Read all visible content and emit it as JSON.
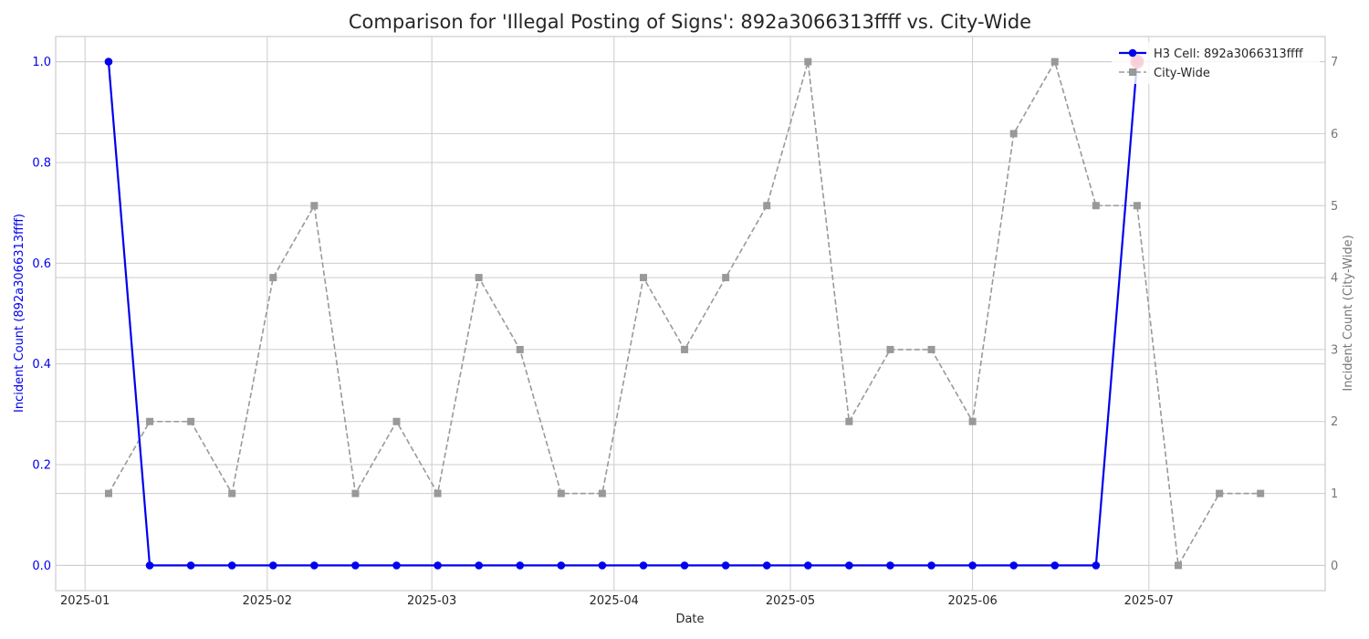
{
  "chart_data": {
    "type": "line",
    "title": "Comparison for 'Illegal Posting of Signs': 892a3066313ffff vs. City-Wide",
    "xlabel": "Date",
    "ylabel_left": "Incident Count (892a3066313ffff)",
    "ylabel_right": "Incident Count (City-Wide)",
    "x_ticks": [
      "2025-01",
      "2025-02",
      "2025-03",
      "2025-04",
      "2025-05",
      "2025-06",
      "2025-07"
    ],
    "x_tick_dates": [
      "2025-01-01",
      "2025-02-01",
      "2025-03-01",
      "2025-04-01",
      "2025-05-01",
      "2025-06-01",
      "2025-07-01"
    ],
    "x_range": [
      "2024-12-27",
      "2025-07-31"
    ],
    "ylim_left": [
      -0.05,
      1.05
    ],
    "ylim_right": [
      -0.35,
      7.35
    ],
    "y_ticks_left": [
      "0.0",
      "0.2",
      "0.4",
      "0.6",
      "0.8",
      "1.0"
    ],
    "y_tick_values_left": [
      0,
      0.2,
      0.4,
      0.6,
      0.8,
      1.0
    ],
    "y_ticks_right": [
      "0",
      "1",
      "2",
      "3",
      "4",
      "5",
      "6",
      "7"
    ],
    "y_tick_values_right": [
      0,
      1,
      2,
      3,
      4,
      5,
      6,
      7
    ],
    "grid": true,
    "legend_position": "top-right",
    "colors": {
      "cell": "#0000ee",
      "city": "#999999",
      "highlight": "#ee1133",
      "left_axis": "#0000ee",
      "right_axis": "#777777",
      "grid": "#cccccc",
      "frame": "#cccccc",
      "text": "#262626"
    },
    "series": [
      {
        "name": "H3 Cell: 892a3066313ffff",
        "axis": "left",
        "x": [
          "2025-01-05",
          "2025-01-12",
          "2025-01-19",
          "2025-01-26",
          "2025-02-02",
          "2025-02-09",
          "2025-02-16",
          "2025-02-23",
          "2025-03-02",
          "2025-03-09",
          "2025-03-16",
          "2025-03-23",
          "2025-03-30",
          "2025-04-06",
          "2025-04-13",
          "2025-04-20",
          "2025-04-27",
          "2025-05-04",
          "2025-05-11",
          "2025-05-18",
          "2025-05-25",
          "2025-06-01",
          "2025-06-08",
          "2025-06-15",
          "2025-06-22",
          "2025-06-29"
        ],
        "values": [
          1,
          0,
          0,
          0,
          0,
          0,
          0,
          0,
          0,
          0,
          0,
          0,
          0,
          0,
          0,
          0,
          0,
          0,
          0,
          0,
          0,
          0,
          0,
          0,
          0,
          1
        ],
        "highlight_dates": [
          "2025-06-29"
        ]
      },
      {
        "name": "City-Wide",
        "axis": "right",
        "x": [
          "2025-01-05",
          "2025-01-12",
          "2025-01-19",
          "2025-01-26",
          "2025-02-02",
          "2025-02-09",
          "2025-02-16",
          "2025-02-23",
          "2025-03-02",
          "2025-03-09",
          "2025-03-16",
          "2025-03-23",
          "2025-03-30",
          "2025-04-06",
          "2025-04-13",
          "2025-04-20",
          "2025-04-27",
          "2025-05-04",
          "2025-05-11",
          "2025-05-18",
          "2025-05-25",
          "2025-06-01",
          "2025-06-08",
          "2025-06-15",
          "2025-06-22",
          "2025-06-29",
          "2025-07-06",
          "2025-07-13",
          "2025-07-20"
        ],
        "values": [
          1,
          2,
          2,
          1,
          4,
          5,
          1,
          2,
          1,
          4,
          3,
          1,
          1,
          4,
          3,
          4,
          5,
          7,
          2,
          3,
          3,
          2,
          6,
          7,
          5,
          5,
          0,
          1,
          1
        ]
      }
    ]
  }
}
